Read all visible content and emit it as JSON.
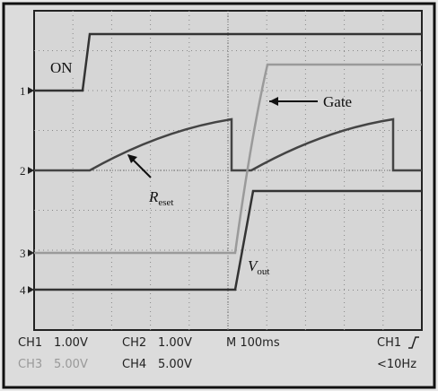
{
  "screen": {
    "annotations": {
      "on": "ON",
      "gate": "Gate",
      "reset": {
        "base": "R",
        "subscript": "eset"
      },
      "vout": {
        "base": "V",
        "subscript": "out"
      }
    },
    "channel_markers": [
      "1",
      "2",
      "3",
      "4"
    ],
    "status": {
      "row1": [
        "CH1",
        "1.00V",
        "CH2",
        "1.00V",
        "M 100ms",
        "CH1"
      ],
      "row2": [
        "CH3",
        "5.00V",
        "CH4",
        "5.00V",
        "<10Hz"
      ]
    }
  }
}
